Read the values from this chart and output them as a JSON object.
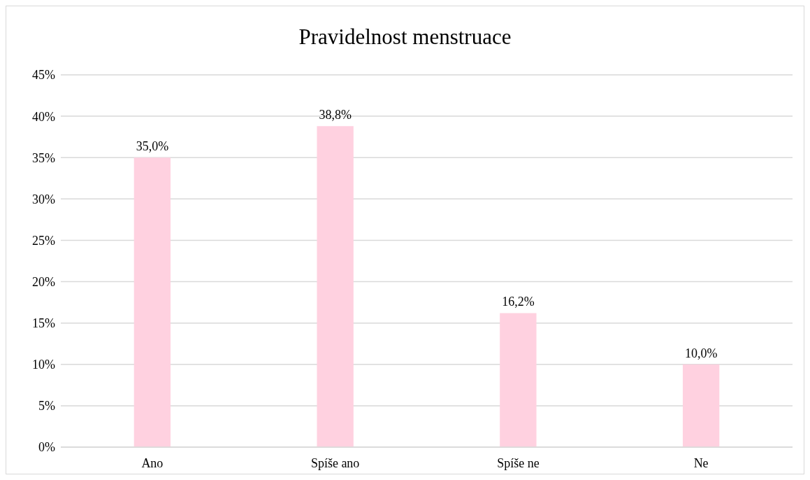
{
  "chart_data": {
    "type": "bar",
    "title": "Pravidelnost menstruace",
    "categories": [
      "Ano",
      "Spíše ano",
      "Spíše ne",
      "Ne"
    ],
    "values": [
      35.0,
      38.8,
      16.2,
      10.0
    ],
    "value_labels": [
      "35,0%",
      "38,8%",
      "16,2%",
      "10,0%"
    ],
    "color": "#ffd1e0",
    "ylim": [
      0,
      45
    ],
    "yticks": [
      {
        "value": 0,
        "label": "0%"
      },
      {
        "value": 5,
        "label": "5%"
      },
      {
        "value": 10,
        "label": "10%"
      },
      {
        "value": 15,
        "label": "15%"
      },
      {
        "value": 20,
        "label": "20%"
      },
      {
        "value": 25,
        "label": "25%"
      },
      {
        "value": 30,
        "label": "30%"
      },
      {
        "value": 35,
        "label": "35%"
      },
      {
        "value": 40,
        "label": "40%"
      },
      {
        "value": 45,
        "label": "45%"
      }
    ],
    "grid": "y",
    "legend": false
  }
}
